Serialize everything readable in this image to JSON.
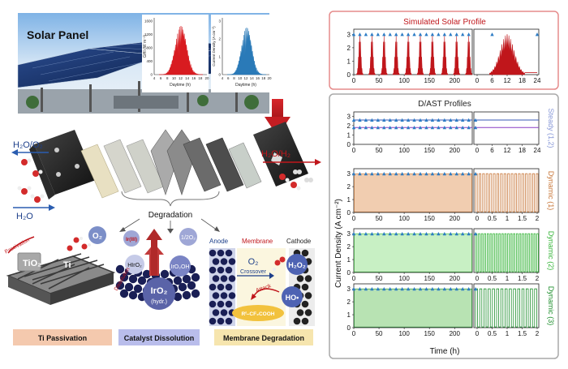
{
  "solar": {
    "title": "Solar Panel",
    "inset1": {
      "ylabel": "GHI (W m⁻²)",
      "xlabel": "Daytime (h)",
      "yticks": [
        "0",
        "400",
        "800",
        "1200",
        "1600"
      ],
      "xticks": [
        "4",
        "6",
        "8",
        "10",
        "12",
        "14",
        "16",
        "18",
        "20"
      ]
    },
    "inset2": {
      "ylabel": "Current Density (A cm⁻²)",
      "xlabel": "Daytime (h)",
      "yticks": [
        "0",
        "1",
        "2",
        "3"
      ],
      "xticks": [
        "4",
        "6",
        "8",
        "10",
        "12",
        "14",
        "16",
        "18",
        "20"
      ]
    }
  },
  "electrolyzer": {
    "left_top": "H₂O/O₂",
    "left_bottom": "H₂O",
    "right_top": "H₂O/H₂",
    "degradation": "Degradation"
  },
  "mechanisms": {
    "passivation": {
      "tio2": "TiO₂",
      "ti": "Ti",
      "o2": "O₂",
      "path": "Passivation",
      "label": "Ti Passivation"
    },
    "dissolution": {
      "iriii": "Ir(III)",
      "half_o2": "1/2O₂",
      "hiro2": "HIrO₂",
      "iro2oh": "IrO₂OH",
      "iro2": "IrO₂",
      "hydr": "(hydr.)",
      "path": "Dissolution",
      "label": "Catalyst Dissolution"
    },
    "membrane": {
      "anode": "Anode",
      "membrane": "Membrane",
      "cathode": "Cathode",
      "o2": "O₂",
      "crossover": "Crossover",
      "h2o2": "H₂O₂",
      "attack": "Attack",
      "ho": "HO•",
      "rf": "Rᶠ–CF₂COOH",
      "label": "Membrane Degradation"
    }
  },
  "right_panel": {
    "solar_profile_title": "Simulated Solar Profile",
    "dast_title": "D/AST Profiles",
    "ylabel": "Current Density (A cm⁻²)",
    "xlabel": "Time (h)",
    "yticks": [
      "0",
      "1",
      "2",
      "3"
    ],
    "xticks_main": [
      "0",
      "50",
      "100",
      "150",
      "200"
    ],
    "xticks_solar_zoom": [
      "0",
      "6",
      "12",
      "18",
      "24"
    ],
    "xticks_steady_zoom": [
      "0",
      "6",
      "12",
      "18",
      "24"
    ],
    "xticks_dyn_zoom": [
      "0",
      "0.5",
      "1",
      "1.5",
      "2"
    ],
    "row_labels": [
      "Steady (1,2)",
      "Dynamic (1)",
      "Dynamic (2)",
      "Dynamic (3)"
    ],
    "colors": {
      "solar": "#c0161b",
      "steady1": "#3a58b4",
      "steady2": "#8a3fc2",
      "dyn1": "#c8773a",
      "dyn2": "#37b53a",
      "dyn3": "#1f8f2e",
      "markers": "#2c7cc5",
      "frame1": "#e58b8b",
      "frame2": "#a9a9a9"
    }
  }
}
